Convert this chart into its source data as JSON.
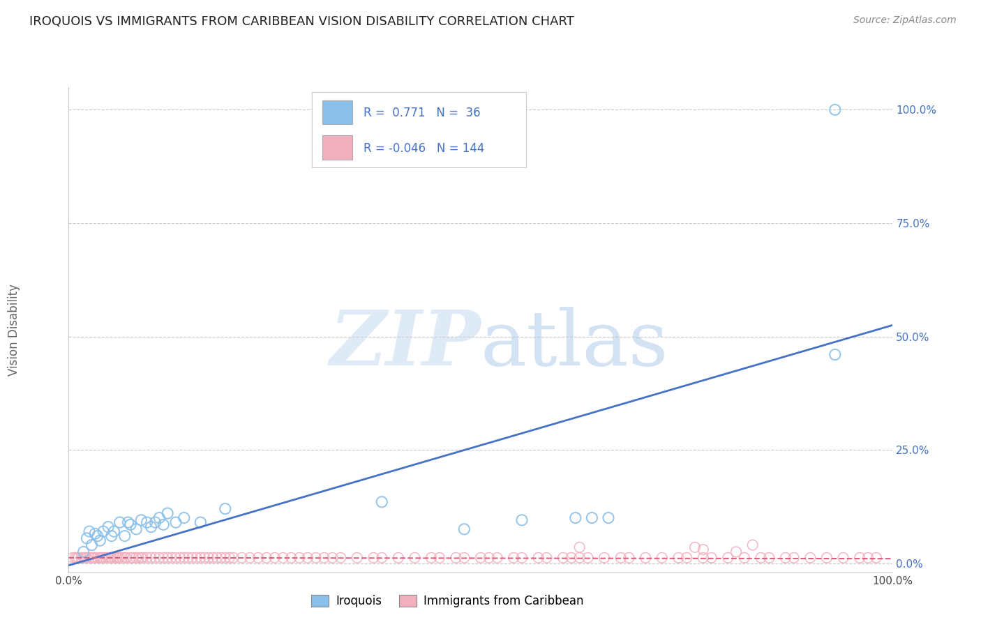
{
  "title": "IROQUOIS VS IMMIGRANTS FROM CARIBBEAN VISION DISABILITY CORRELATION CHART",
  "source": "Source: ZipAtlas.com",
  "ylabel": "Vision Disability",
  "xlim": [
    0.0,
    1.0
  ],
  "ylim": [
    -0.02,
    1.05
  ],
  "ytick_vals": [
    0.0,
    0.25,
    0.5,
    0.75,
    1.0
  ],
  "ytick_labels": [
    "0.0%",
    "25.0%",
    "50.0%",
    "75.0%",
    "100.0%"
  ],
  "xtick_vals": [
    0.0,
    1.0
  ],
  "xtick_labels": [
    "0.0%",
    "100.0%"
  ],
  "background_color": "#ffffff",
  "iroquois_color": "#89BFE8",
  "immigrants_color": "#F2AFBE",
  "line_blue_color": "#4472C4",
  "line_pink_color": "#D95F7F",
  "grid_color": "#c8c8c8",
  "tick_label_color": "#4472C4",
  "ylabel_color": "#666666",
  "title_color": "#222222",
  "source_color": "#888888",
  "legend_text_color": "#4472C4",
  "legend_R1": "R =  0.771",
  "legend_N1": "N =  36",
  "legend_R2": "R = -0.046",
  "legend_N2": "N = 144",
  "iroquois_scatter_x": [
    0.018,
    0.022,
    0.025,
    0.028,
    0.032,
    0.035,
    0.038,
    0.042,
    0.048,
    0.052,
    0.055,
    0.062,
    0.068,
    0.072,
    0.075,
    0.082,
    0.088,
    0.095,
    0.1,
    0.105,
    0.11,
    0.115,
    0.12,
    0.13,
    0.14,
    0.16,
    0.19,
    0.38,
    0.48,
    0.55,
    0.615,
    0.635,
    0.655,
    0.93,
    0.93
  ],
  "iroquois_scatter_y": [
    0.025,
    0.055,
    0.07,
    0.04,
    0.065,
    0.06,
    0.05,
    0.07,
    0.08,
    0.06,
    0.07,
    0.09,
    0.06,
    0.09,
    0.085,
    0.075,
    0.095,
    0.09,
    0.08,
    0.09,
    0.1,
    0.085,
    0.11,
    0.09,
    0.1,
    0.09,
    0.12,
    0.135,
    0.075,
    0.095,
    0.1,
    0.1,
    0.1,
    0.46,
    1.0
  ],
  "immigrants_scatter_x": [
    0.005,
    0.008,
    0.01,
    0.012,
    0.015,
    0.018,
    0.02,
    0.022,
    0.025,
    0.028,
    0.03,
    0.032,
    0.035,
    0.038,
    0.04,
    0.042,
    0.045,
    0.048,
    0.05,
    0.052,
    0.055,
    0.058,
    0.06,
    0.062,
    0.065,
    0.068,
    0.07,
    0.075,
    0.078,
    0.082,
    0.085,
    0.088,
    0.09,
    0.095,
    0.1,
    0.105,
    0.11,
    0.115,
    0.12,
    0.125,
    0.13,
    0.135,
    0.14,
    0.145,
    0.15,
    0.155,
    0.16,
    0.165,
    0.17,
    0.175,
    0.18,
    0.185,
    0.19,
    0.195,
    0.2,
    0.21,
    0.22,
    0.23,
    0.24,
    0.25,
    0.26,
    0.27,
    0.28,
    0.29,
    0.3,
    0.31,
    0.32,
    0.33,
    0.35,
    0.37,
    0.38,
    0.4,
    0.42,
    0.44,
    0.45,
    0.47,
    0.48,
    0.5,
    0.51,
    0.52,
    0.54,
    0.55,
    0.57,
    0.58,
    0.6,
    0.61,
    0.62,
    0.63,
    0.65,
    0.67,
    0.68,
    0.7,
    0.72,
    0.74,
    0.75,
    0.77,
    0.78,
    0.8,
    0.82,
    0.84,
    0.85,
    0.87,
    0.88,
    0.9,
    0.92,
    0.94,
    0.96,
    0.97,
    0.98,
    0.62,
    0.76,
    0.77,
    0.81,
    0.83
  ],
  "immigrants_scatter_y": [
    0.012,
    0.012,
    0.012,
    0.012,
    0.012,
    0.012,
    0.012,
    0.012,
    0.012,
    0.012,
    0.012,
    0.012,
    0.012,
    0.012,
    0.012,
    0.012,
    0.012,
    0.012,
    0.012,
    0.012,
    0.012,
    0.012,
    0.012,
    0.012,
    0.012,
    0.012,
    0.012,
    0.012,
    0.012,
    0.012,
    0.012,
    0.012,
    0.012,
    0.012,
    0.012,
    0.012,
    0.012,
    0.012,
    0.012,
    0.012,
    0.012,
    0.012,
    0.012,
    0.012,
    0.012,
    0.012,
    0.012,
    0.012,
    0.012,
    0.012,
    0.012,
    0.012,
    0.012,
    0.012,
    0.012,
    0.012,
    0.012,
    0.012,
    0.012,
    0.012,
    0.012,
    0.012,
    0.012,
    0.012,
    0.012,
    0.012,
    0.012,
    0.012,
    0.012,
    0.012,
    0.012,
    0.012,
    0.012,
    0.012,
    0.012,
    0.012,
    0.012,
    0.012,
    0.012,
    0.012,
    0.012,
    0.012,
    0.012,
    0.012,
    0.012,
    0.012,
    0.012,
    0.012,
    0.012,
    0.012,
    0.012,
    0.012,
    0.012,
    0.012,
    0.012,
    0.012,
    0.012,
    0.012,
    0.012,
    0.012,
    0.012,
    0.012,
    0.012,
    0.012,
    0.012,
    0.012,
    0.012,
    0.012,
    0.012,
    0.035,
    0.035,
    0.03,
    0.025,
    0.04
  ],
  "blue_line_x": [
    0.0,
    1.0
  ],
  "blue_line_y": [
    -0.005,
    0.525
  ],
  "pink_line_x": [
    0.0,
    1.0
  ],
  "pink_line_y": [
    0.012,
    0.01
  ]
}
